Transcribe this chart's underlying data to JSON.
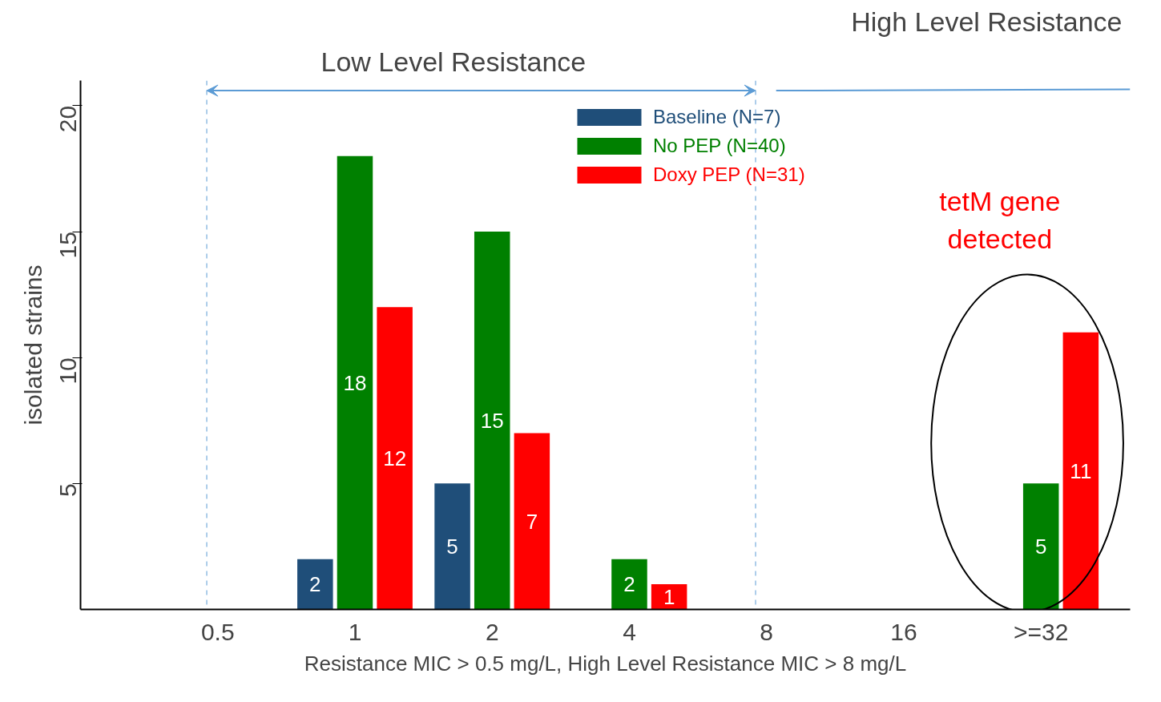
{
  "chart_data": {
    "type": "bar",
    "categories": [
      "0.5",
      "1",
      "2",
      "4",
      "8",
      "16",
      ">=32"
    ],
    "series": [
      {
        "name": "Baseline (N=7)",
        "color": "#1f4e79",
        "values": [
          null,
          2,
          5,
          null,
          null,
          null,
          null
        ]
      },
      {
        "name": "No PEP (N=40)",
        "color": "#008000",
        "values": [
          null,
          18,
          15,
          2,
          null,
          null,
          5
        ]
      },
      {
        "name": "Doxy PEP (N=31)",
        "color": "#ff0000",
        "values": [
          null,
          12,
          7,
          1,
          null,
          null,
          11
        ]
      }
    ],
    "ylabel": "isolated strains",
    "xlabel": "Resistance MIC > 0.5 mg/L, High Level Resistance MIC > 8 mg/L",
    "ylim": [
      0,
      21
    ],
    "yticks": [
      5,
      10,
      15,
      20
    ],
    "ref_lines": [
      {
        "axis": "x",
        "value": "0.5",
        "color": "#5b9bd5",
        "line_style": "dashed"
      },
      {
        "axis": "x",
        "value": "8",
        "color": "#5b9bd5",
        "line_style": "dashed"
      }
    ],
    "annotations": [
      "Low Level  Resistance",
      "High Level Resistance",
      "tetM gene detected"
    ],
    "data_labels": true,
    "grid": false,
    "legend": "top"
  }
}
